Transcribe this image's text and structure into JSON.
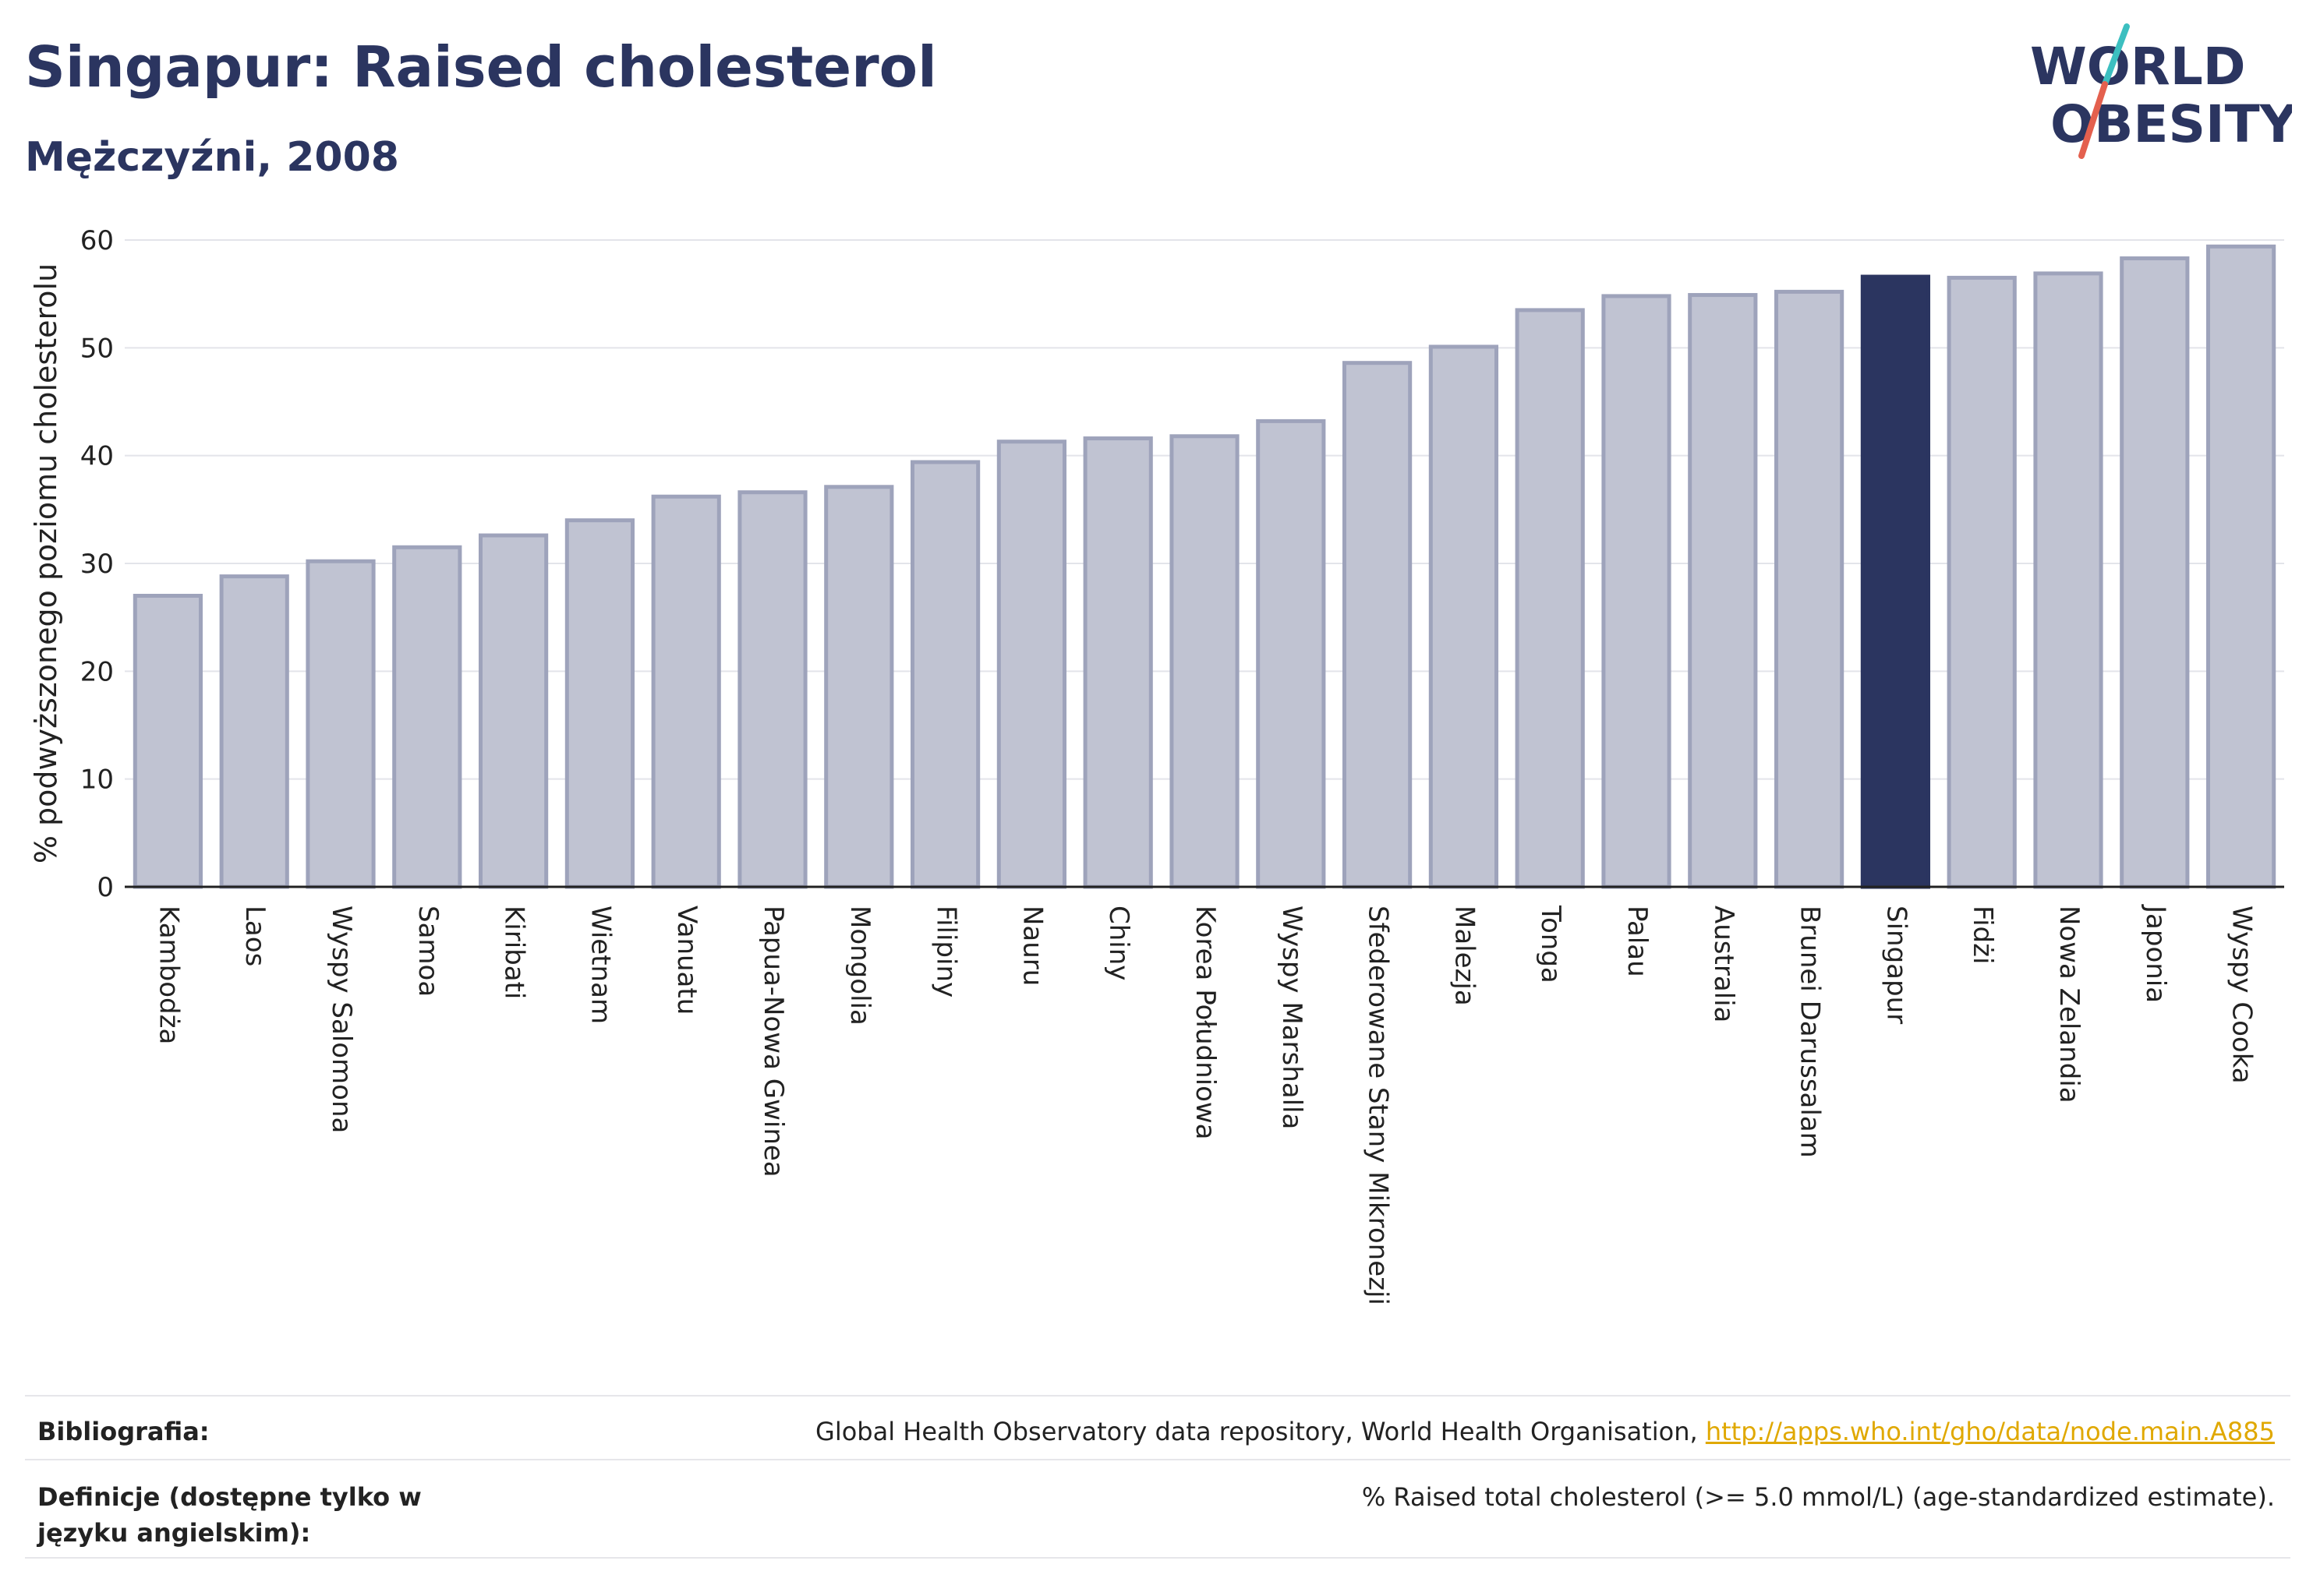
{
  "header": {
    "title": "Singapur: Raised cholesterol",
    "subtitle": "Mężczyźni, 2008",
    "logo_line1": "WORLD",
    "logo_line2": "OBESITY"
  },
  "colors": {
    "bar": "#c0c3d2",
    "bar_edge": "#9ea3bb",
    "highlight": "#2b3560",
    "logo_text": "#2b3560",
    "logo_slash_teal": "#3cbfc0",
    "logo_slash_red": "#e4604e",
    "link": "#e0a800"
  },
  "chart_data": {
    "type": "bar",
    "ylabel": "% podwyższonego poziomu cholesterolu",
    "ylim": [
      0,
      60
    ],
    "yticks": [
      0,
      10,
      20,
      30,
      40,
      50,
      60
    ],
    "grid": true,
    "highlight": "Singapur",
    "categories": [
      "Kambodża",
      "Laos",
      "Wyspy Salomona",
      "Samoa",
      "Kiribati",
      "Wietnam",
      "Vanuatu",
      "Papua-Nowa Gwinea",
      "Mongolia",
      "Filipiny",
      "Nauru",
      "Chiny",
      "Korea Południowa",
      "Wyspy Marshalla",
      "Sfederowane Stany Mikronezji",
      "Malezja",
      "Tonga",
      "Palau",
      "Australia",
      "Brunei Darussalam",
      "Singapur",
      "Fidżi",
      "Nowa Zelandia",
      "Japonia",
      "Wyspy Cooka"
    ],
    "values": [
      27.0,
      28.8,
      30.2,
      31.5,
      32.6,
      34.0,
      36.2,
      36.6,
      37.1,
      39.4,
      41.3,
      41.6,
      41.8,
      43.2,
      48.6,
      50.1,
      53.5,
      54.8,
      54.9,
      55.2,
      56.6,
      56.5,
      56.9,
      58.3,
      59.4
    ]
  },
  "footer": {
    "bibliography_label": "Bibliografia:",
    "bibliography_text": "Global Health Observatory data repository, World Health Organisation, ",
    "bibliography_link": "http://apps.who.int/gho/data/node.main.A885",
    "definitions_label": "Definicje (dostępne tylko w języku angielskim):",
    "definitions_text": "% Raised total cholesterol (>= 5.0 mmol/L) (age-standardized estimate)."
  }
}
